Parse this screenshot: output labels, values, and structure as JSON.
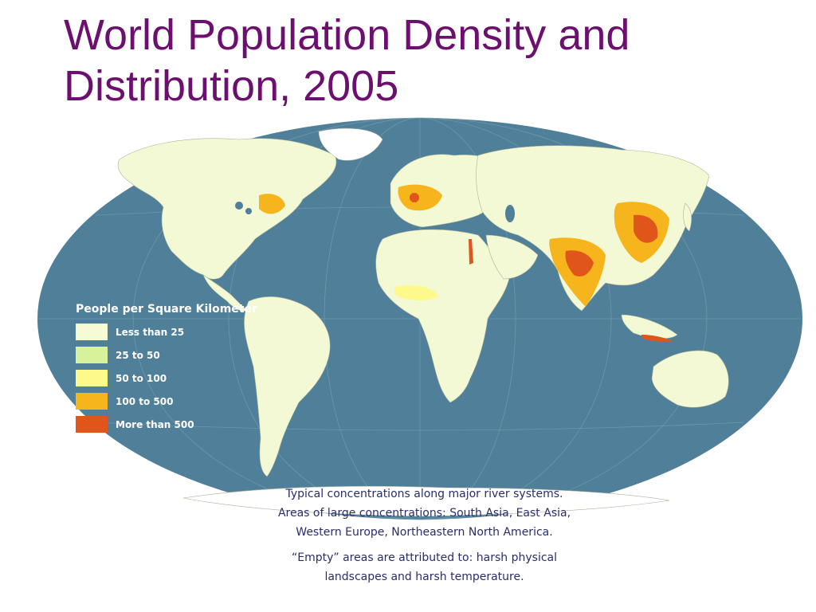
{
  "title": {
    "line1": "World Population Density and",
    "line2": "Distribution, 2005"
  },
  "legend": {
    "title": "People per Square Kilometer",
    "items": [
      {
        "label": "Less than 25",
        "color": "#f6fbd6"
      },
      {
        "label": "25 to 50",
        "color": "#d7f29a"
      },
      {
        "label": "50 to 100",
        "color": "#fdf98a"
      },
      {
        "label": "100 to 500",
        "color": "#f6b41d"
      },
      {
        "label": "More than 500",
        "color": "#e0561a"
      }
    ]
  },
  "notes": {
    "line1": "Typical concentrations along major river systems.",
    "line2": "Areas of large concentrations: South Asia, East Asia,",
    "line3": "Western Europe, Northeastern North America.",
    "line4": "“Empty” areas are attributed to: harsh physical",
    "line5": "landscapes and harsh temperature."
  },
  "colors": {
    "ocean": "#4f7f99",
    "land": "#f4f9d5",
    "title": "#6d0f6f",
    "notes": "#2a2d6a"
  }
}
